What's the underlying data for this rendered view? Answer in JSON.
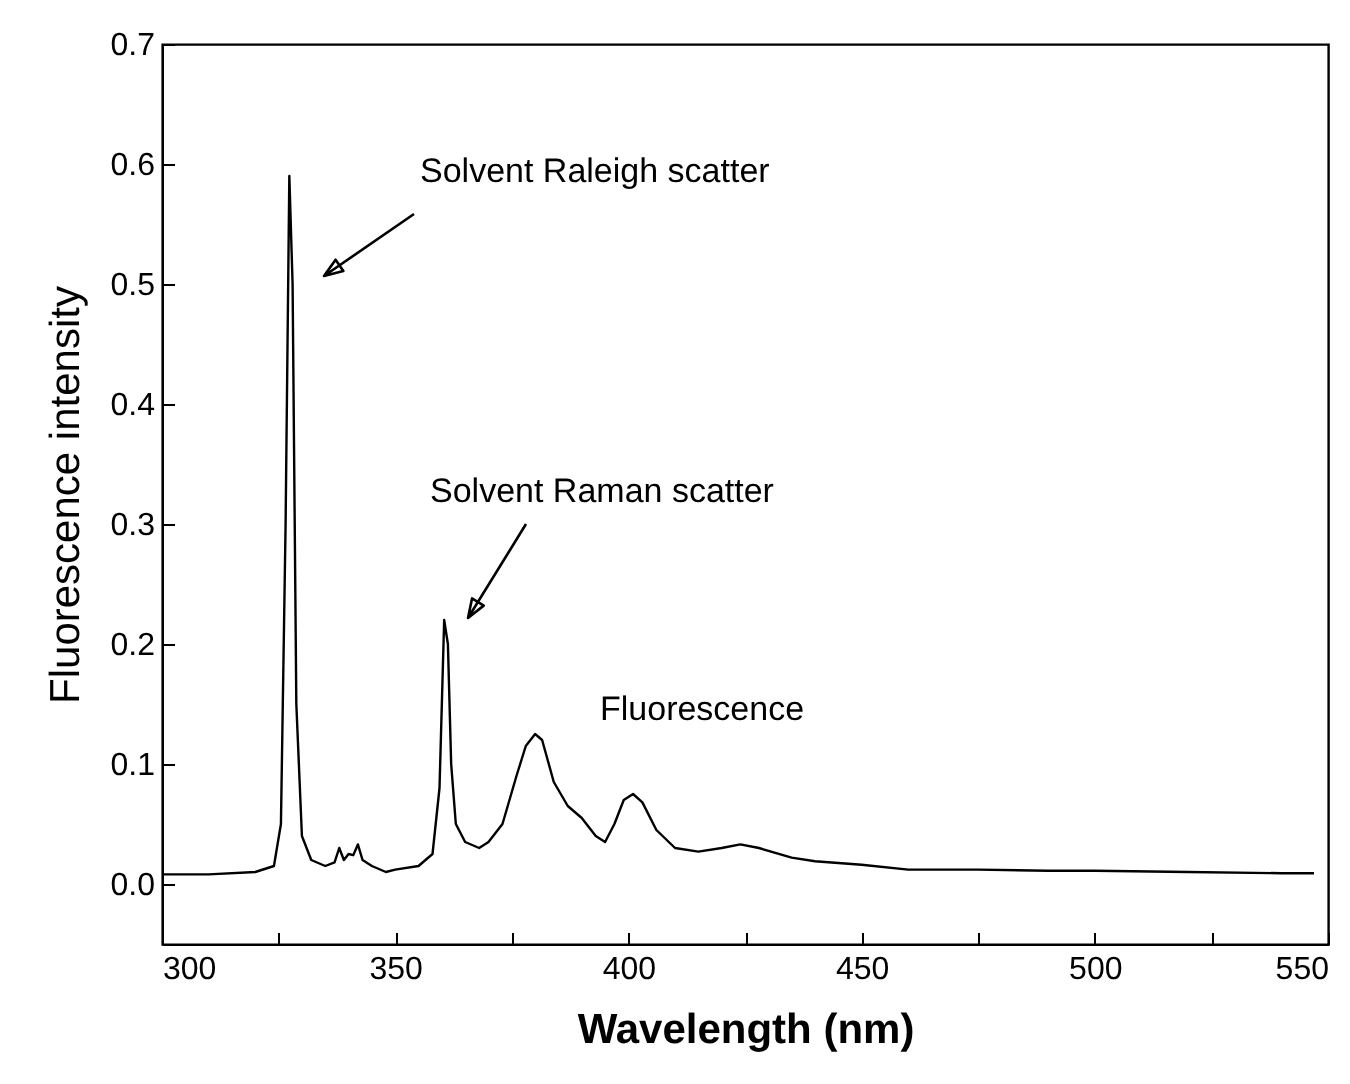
{
  "chart_data": {
    "type": "line",
    "xlabel": "Wavelength (nm)",
    "ylabel": "Fluorescence intensity",
    "x": [
      300,
      310,
      320,
      324,
      325.5,
      326.5,
      327.3,
      328,
      328.8,
      330,
      332,
      335,
      337,
      338,
      339,
      340,
      341,
      342,
      343,
      345,
      348,
      350,
      355,
      358,
      359.5,
      360.5,
      361.3,
      362,
      363,
      365,
      368,
      370,
      373,
      376,
      378,
      380,
      381.5,
      384,
      387,
      390,
      393,
      395,
      397,
      399,
      401,
      403,
      406,
      410,
      415,
      420,
      424,
      428,
      435,
      440,
      450,
      460,
      475,
      490,
      500,
      520,
      540,
      547
    ],
    "series": [
      {
        "color": "#000000",
        "values": [
          0.008,
          0.008,
          0.01,
          0.015,
          0.05,
          0.3,
          0.59,
          0.5,
          0.15,
          0.04,
          0.02,
          0.015,
          0.018,
          0.03,
          0.02,
          0.025,
          0.024,
          0.033,
          0.02,
          0.015,
          0.01,
          0.012,
          0.015,
          0.025,
          0.08,
          0.22,
          0.2,
          0.1,
          0.05,
          0.035,
          0.03,
          0.035,
          0.05,
          0.09,
          0.115,
          0.125,
          0.12,
          0.085,
          0.065,
          0.055,
          0.04,
          0.035,
          0.05,
          0.07,
          0.075,
          0.068,
          0.045,
          0.03,
          0.027,
          0.03,
          0.033,
          0.03,
          0.022,
          0.019,
          0.016,
          0.012,
          0.012,
          0.011,
          0.011,
          0.01,
          0.009,
          0.009
        ]
      }
    ],
    "xlim": [
      300,
      550
    ],
    "xticks": [
      300,
      {
        "value": 325,
        "label": null
      },
      350,
      {
        "value": 375,
        "label": null
      },
      400,
      {
        "value": 425,
        "label": null
      },
      450,
      {
        "value": 475,
        "label": null
      },
      500,
      {
        "value": 525,
        "label": null
      },
      550
    ],
    "ylim": [
      -0.05,
      0.7
    ],
    "yticks": [
      {
        "value": 0,
        "label": "0.0"
      },
      {
        "value": 0.1,
        "label": "0.1"
      },
      {
        "value": 0.2,
        "label": "0.2"
      },
      {
        "value": 0.3,
        "label": "0.3"
      },
      {
        "value": 0.4,
        "label": "0.4"
      },
      {
        "value": 0.5,
        "label": "0.5"
      },
      {
        "value": 0.6,
        "label": "0.6"
      },
      {
        "value": 0.7,
        "label": "0.7"
      }
    ],
    "annotations": [
      "Solvent Raleigh scatter",
      "Solvent Raman scatter",
      "Fluorescence"
    ],
    "grid": false,
    "marker": "none",
    "line_style": "solid"
  }
}
